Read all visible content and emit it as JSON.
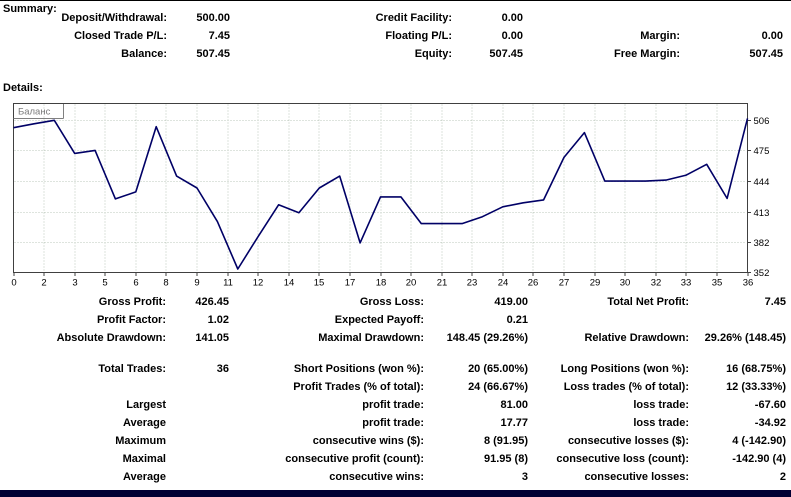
{
  "summary": {
    "heading": "Summary:",
    "rows": [
      [
        "Deposit/Withdrawal:",
        "500.00",
        "Credit Facility:",
        "0.00",
        "",
        ""
      ],
      [
        "Closed Trade P/L:",
        "7.45",
        "Floating P/L:",
        "0.00",
        "Margin:",
        "0.00"
      ],
      [
        "Balance:",
        "507.45",
        "Equity:",
        "507.45",
        "Free Margin:",
        "507.45"
      ]
    ]
  },
  "details": {
    "heading": "Details:",
    "block1": [
      [
        "Gross Profit:",
        "426.45",
        "Gross Loss:",
        "419.00",
        "Total Net Profit:",
        "7.45"
      ],
      [
        "Profit Factor:",
        "1.02",
        "Expected Payoff:",
        "0.21",
        "",
        ""
      ],
      [
        "Absolute Drawdown:",
        "141.05",
        "Maximal Drawdown:",
        "148.45 (29.26%)",
        "Relative Drawdown:",
        "29.26% (148.45)"
      ]
    ],
    "block2": [
      [
        "Total Trades:",
        "36",
        "Short Positions (won %):",
        "20 (65.00%)",
        "Long Positions (won %):",
        "16 (68.75%)"
      ],
      [
        "",
        "",
        "Profit Trades (% of total):",
        "24 (66.67%)",
        "Loss trades (% of total):",
        "12 (33.33%)"
      ],
      [
        "Largest",
        "",
        "profit trade:",
        "81.00",
        "loss trade:",
        "-67.60"
      ],
      [
        "Average",
        "",
        "profit trade:",
        "17.77",
        "loss trade:",
        "-34.92"
      ],
      [
        "Maximum",
        "",
        "consecutive wins ($):",
        "8 (91.95)",
        "consecutive losses ($):",
        "4 (-142.90)"
      ],
      [
        "Maximal",
        "",
        "consecutive profit (count):",
        "91.95 (8)",
        "consecutive loss (count):",
        "-142.90 (4)"
      ],
      [
        "Average",
        "",
        "consecutive wins:",
        "3",
        "consecutive losses:",
        "2"
      ]
    ]
  },
  "chart_data": {
    "type": "line",
    "title": "",
    "legend": "Баланс",
    "x": [
      0,
      1,
      2,
      3,
      4,
      5,
      6,
      7,
      8,
      9,
      10,
      11,
      12,
      13,
      14,
      15,
      16,
      17,
      18,
      19,
      20,
      21,
      22,
      23,
      24,
      25,
      26,
      27,
      28,
      29,
      30,
      31,
      32,
      33,
      34,
      35,
      36
    ],
    "values": [
      498,
      502,
      505.5,
      472,
      475,
      426,
      433,
      499,
      449,
      437,
      403,
      355,
      388,
      420,
      412,
      437,
      449,
      381.4,
      428,
      428,
      401,
      401,
      401,
      408,
      418,
      422,
      425,
      468,
      493,
      444,
      444,
      444,
      445,
      450,
      461,
      426.45,
      507.45
    ],
    "xlabel": "",
    "ylabel": "",
    "ylim": [
      352,
      523
    ],
    "y_ticks": [
      506,
      475,
      444,
      413,
      382,
      352
    ],
    "x_tick_positions": [
      0,
      1.5,
      3,
      4.5,
      6,
      7.5,
      9,
      10.5,
      12,
      13.5,
      15,
      16.5,
      18,
      19.5,
      21,
      22.5,
      24,
      25.5,
      27,
      28.5,
      30,
      31.5,
      33,
      34.5,
      36
    ],
    "x_tick_labels": [
      "0",
      "2",
      "3",
      "5",
      "6",
      "8",
      "9",
      "11",
      "12",
      "14",
      "15",
      "17",
      "18",
      "20",
      "21",
      "23",
      "24",
      "26",
      "27",
      "29",
      "30",
      "32",
      "33",
      "35",
      "36"
    ],
    "grid": true,
    "legend_position": "top-left",
    "line_color": "#000066",
    "grid_color": "#bcc8bc",
    "border_color": "#404040",
    "legend_color": "#7a7a7a",
    "tick_label_color": "#000000",
    "bottom_bar_color": "#000033"
  }
}
